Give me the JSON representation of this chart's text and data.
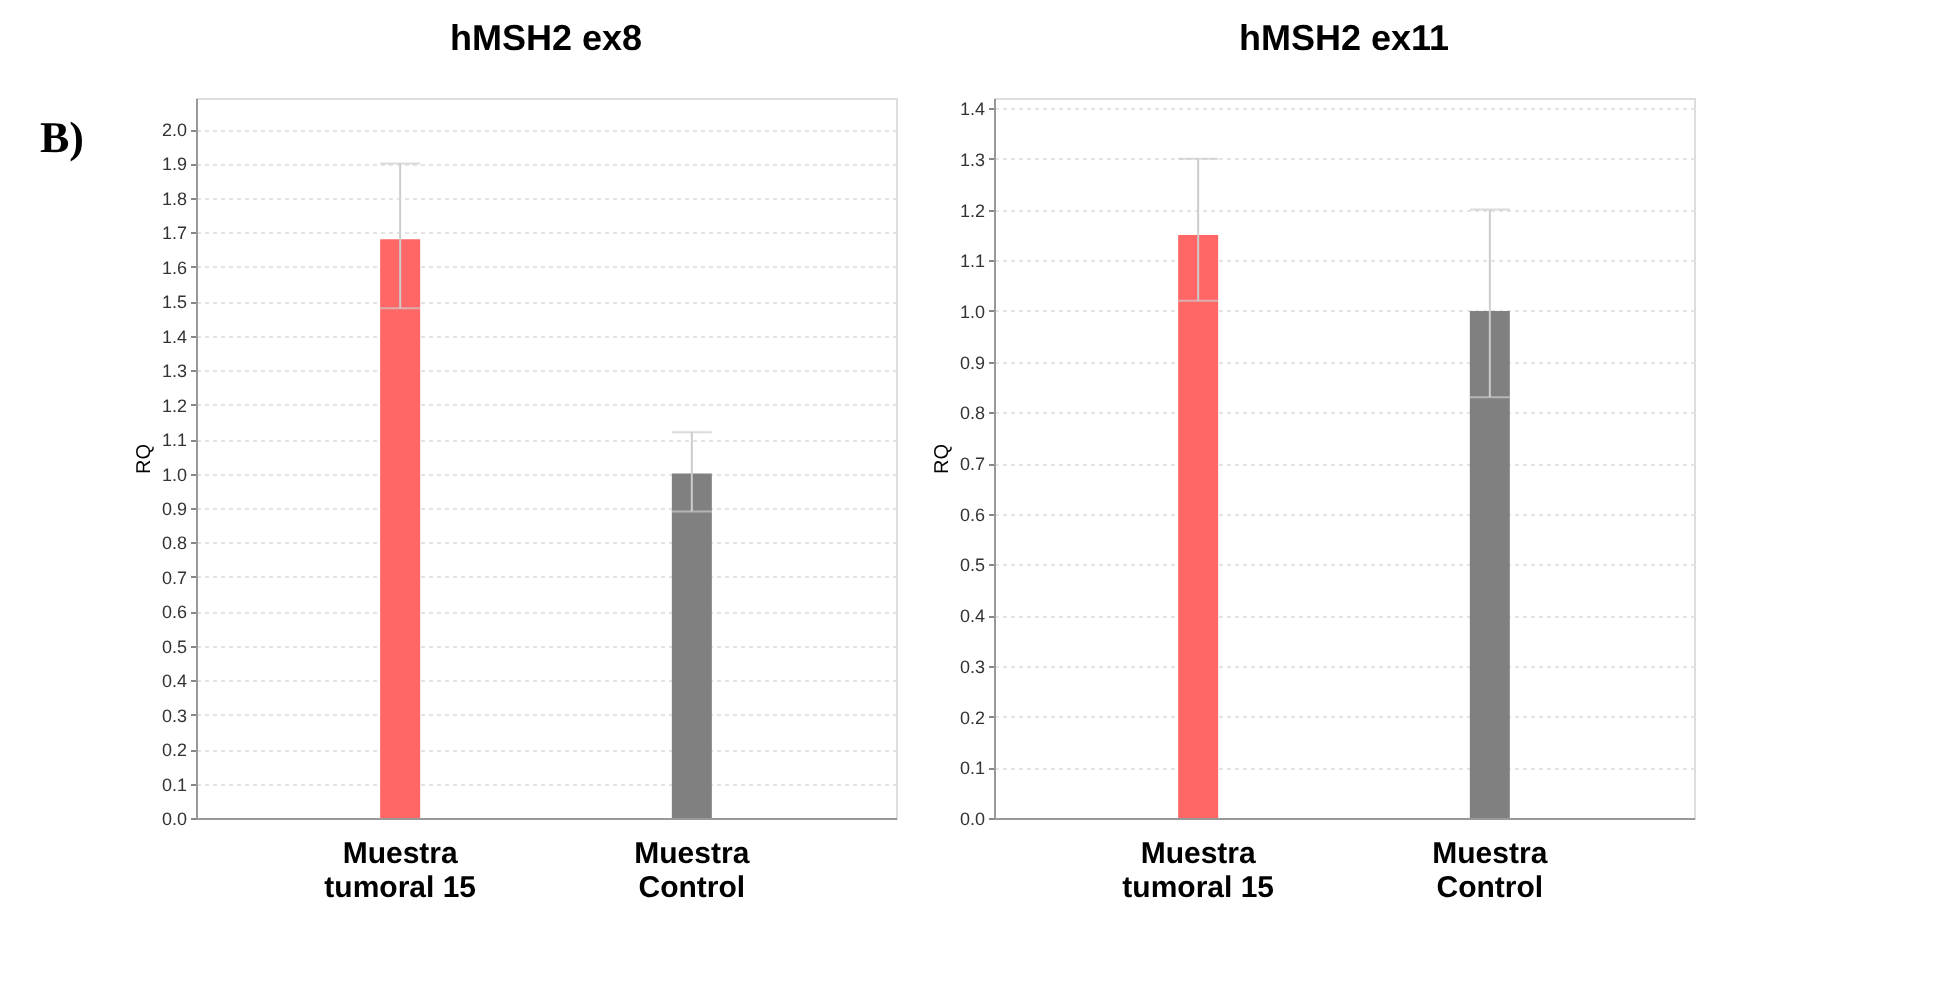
{
  "chart_data": [
    {
      "type": "bar",
      "title": "hMSH2 ex8",
      "ylabel": "RQ",
      "annotations": [
        "B)"
      ],
      "categories": [
        "Muestra\ntumoral  15",
        "Muestra\nControl"
      ],
      "values": [
        1.68,
        1.0
      ],
      "colors": [
        "#ff6666",
        "#808080"
      ],
      "errors": [
        [
          1.48,
          1.9
        ],
        [
          0.89,
          1.12
        ]
      ],
      "ylim": [
        0,
        2.09
      ],
      "yticks": [
        {
          "value": 0,
          "label": "0.0"
        },
        0.1,
        0.2,
        0.3,
        0.4,
        0.5,
        0.6,
        0.7,
        0.8,
        0.9,
        {
          "value": 1,
          "label": "1.0"
        },
        1.1,
        1.2,
        1.3,
        1.4,
        1.5,
        1.6,
        1.7,
        1.8,
        1.9,
        {
          "value": 2,
          "label": "2.0"
        }
      ],
      "grid": "y"
    },
    {
      "type": "bar",
      "title": "hMSH2 ex11",
      "ylabel": "RQ",
      "categories": [
        "Muestra\ntumoral  15",
        "Muestra\nControl"
      ],
      "values": [
        1.15,
        1.0
      ],
      "colors": [
        "#ff6666",
        "#808080"
      ],
      "errors": [
        [
          1.02,
          1.3
        ],
        [
          0.83,
          1.2
        ]
      ],
      "ylim": [
        0,
        1.42
      ],
      "yticks": [
        {
          "value": 0,
          "label": "0.0"
        },
        0.1,
        0.2,
        0.3,
        0.4,
        0.5,
        0.6,
        0.7,
        0.8,
        0.9,
        {
          "value": 1,
          "label": "1.0"
        },
        1.1,
        1.2,
        1.3,
        1.4
      ],
      "grid": "y"
    }
  ]
}
